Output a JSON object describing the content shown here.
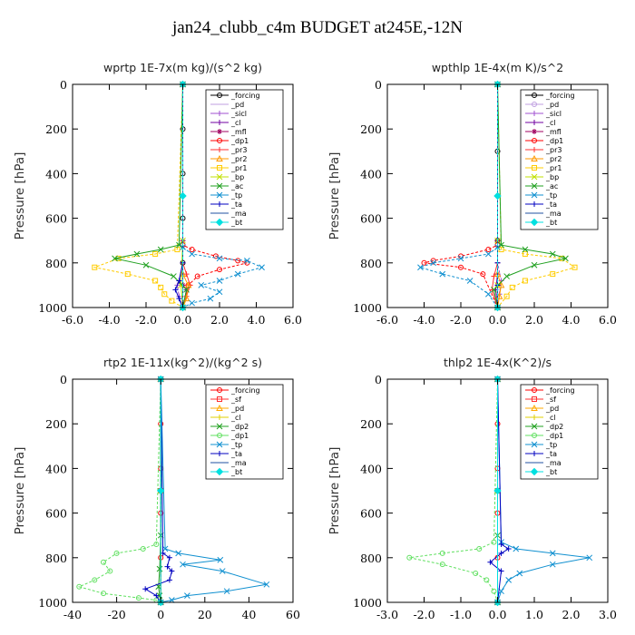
{
  "title": "jan24_clubb_c4m  BUDGET at245E,-12N",
  "chart_data": [
    {
      "type": "line",
      "title": "wprtp  1E-7x(m kg)/(s^2 kg)",
      "ylabel": "Pressure [hPa]",
      "xlim": [
        -6,
        6
      ],
      "ylim": [
        0,
        1000
      ],
      "y_inverted": true,
      "xticks": [
        "-6.0",
        "-4.0",
        "-2.0",
        "0.0",
        "2.0",
        "4.0",
        "6.0"
      ],
      "yticks": [
        "0",
        "200",
        "400",
        "600",
        "800",
        "1000"
      ],
      "legend_position": "top-right",
      "series": [
        {
          "name": "_forcing",
          "color": "#000000",
          "marker": "o",
          "x": [
            0,
            0,
            0,
            0,
            0,
            0
          ],
          "y": [
            0,
            200,
            400,
            600,
            800,
            1000
          ]
        },
        {
          "name": "_pd",
          "color": "#bf9fe0",
          "marker": "none",
          "x": [
            0,
            0,
            0,
            0
          ],
          "y": [
            0,
            500,
            900,
            1000
          ]
        },
        {
          "name": "_sicl",
          "color": "#a050d0",
          "marker": "+",
          "x": [
            0,
            0,
            0,
            -0.3,
            -0.2,
            0
          ],
          "y": [
            0,
            700,
            850,
            900,
            950,
            1000
          ]
        },
        {
          "name": "_cl",
          "color": "#7000a0",
          "marker": "+",
          "x": [
            0,
            0,
            -0.2,
            0.2,
            0
          ],
          "y": [
            0,
            800,
            880,
            920,
            1000
          ]
        },
        {
          "name": "_mfl",
          "color": "#a00060",
          "marker": "*",
          "x": [
            0,
            0,
            0,
            0
          ],
          "y": [
            0,
            700,
            900,
            1000
          ]
        },
        {
          "name": "_dp1",
          "color": "#ff0000",
          "marker": "o",
          "x": [
            0,
            0,
            0.5,
            1.8,
            3,
            3.5,
            2,
            0.8,
            0.3,
            0
          ],
          "y": [
            0,
            720,
            740,
            770,
            790,
            800,
            830,
            860,
            900,
            1000
          ]
        },
        {
          "name": "_pr3",
          "color": "#ff3030",
          "marker": "+",
          "x": [
            0,
            0,
            0.2,
            0.4,
            0.2,
            0
          ],
          "y": [
            0,
            800,
            850,
            900,
            950,
            1000
          ]
        },
        {
          "name": "_pr2",
          "color": "#ff9900",
          "marker": "triangle",
          "x": [
            0,
            0,
            0.3,
            0.2,
            0
          ],
          "y": [
            0,
            850,
            900,
            960,
            1000
          ]
        },
        {
          "name": "_pr1",
          "color": "#ffcc00",
          "marker": "square",
          "x": [
            0,
            -0.3,
            -1.5,
            -3.5,
            -4.8,
            -3,
            -1.5,
            -1.2,
            -1,
            -0.6,
            0
          ],
          "y": [
            0,
            740,
            760,
            780,
            820,
            850,
            880,
            910,
            940,
            970,
            1000
          ]
        },
        {
          "name": "_bp",
          "color": "#c0e000",
          "marker": "x",
          "x": [
            0,
            0,
            -0.1,
            0
          ],
          "y": [
            0,
            700,
            900,
            1000
          ]
        },
        {
          "name": "_ac",
          "color": "#20a020",
          "marker": "x",
          "x": [
            0,
            -0.2,
            -1.2,
            -2.5,
            -3.7,
            -2,
            -0.5,
            0.2,
            0
          ],
          "y": [
            0,
            720,
            740,
            760,
            780,
            810,
            860,
            920,
            1000
          ]
        },
        {
          "name": "_tp",
          "color": "#1090d0",
          "marker": "x",
          "x": [
            0,
            0,
            0.5,
            2,
            3.5,
            4.3,
            3,
            2,
            1,
            2,
            1.5,
            0.5,
            0
          ],
          "y": [
            0,
            730,
            760,
            780,
            790,
            820,
            850,
            880,
            900,
            930,
            960,
            980,
            1000
          ]
        },
        {
          "name": "_ta",
          "color": "#0000c0",
          "marker": "+",
          "x": [
            0,
            0,
            -0.2,
            -0.4,
            -0.2,
            0
          ],
          "y": [
            0,
            800,
            880,
            920,
            960,
            1000
          ]
        },
        {
          "name": "_ma",
          "color": "#2050a0",
          "marker": "none",
          "x": [
            0,
            0,
            0
          ],
          "y": [
            0,
            700,
            1000
          ]
        },
        {
          "name": "_bt",
          "color": "#00e0e0",
          "marker": "diamond",
          "x": [
            0,
            0,
            0
          ],
          "y": [
            0,
            500,
            1000
          ]
        }
      ]
    },
    {
      "type": "line",
      "title": "wpthlp  1E-4x(m K)/s^2",
      "ylabel": "Pressure [hPa]",
      "xlim": [
        -6,
        6
      ],
      "ylim": [
        0,
        1000
      ],
      "y_inverted": true,
      "xticks": [
        "-6.0",
        "-4.0",
        "-2.0",
        "0.0",
        "2.0",
        "4.0",
        "6.0"
      ],
      "yticks": [
        "0",
        "200",
        "400",
        "600",
        "800",
        "1000"
      ],
      "legend_position": "top-right",
      "series": [
        {
          "name": "_forcing",
          "color": "#000000",
          "marker": "o",
          "x": [
            0,
            0,
            0,
            0
          ],
          "y": [
            0,
            300,
            700,
            1000
          ]
        },
        {
          "name": "_pd",
          "color": "#bf9fe0",
          "marker": "o",
          "x": [
            0,
            0,
            0
          ],
          "y": [
            0,
            500,
            1000
          ]
        },
        {
          "name": "_sicl",
          "color": "#a050d0",
          "marker": "+",
          "x": [
            0,
            0,
            0.2,
            0.1,
            0
          ],
          "y": [
            0,
            800,
            880,
            940,
            1000
          ]
        },
        {
          "name": "_cl",
          "color": "#7000a0",
          "marker": "+",
          "x": [
            0,
            0,
            -0.1,
            0
          ],
          "y": [
            0,
            850,
            920,
            1000
          ]
        },
        {
          "name": "_mfl",
          "color": "#a00060",
          "marker": "*",
          "x": [
            0,
            0,
            0,
            0
          ],
          "y": [
            0,
            700,
            900,
            1000
          ]
        },
        {
          "name": "_dp1",
          "color": "#ff0000",
          "marker": "o",
          "x": [
            0,
            0,
            -0.5,
            -2,
            -3.5,
            -4,
            -2,
            -0.8,
            0
          ],
          "y": [
            0,
            720,
            740,
            770,
            790,
            800,
            820,
            850,
            1000
          ]
        },
        {
          "name": "_pr3",
          "color": "#ff3030",
          "marker": "+",
          "x": [
            0,
            0,
            -0.2,
            -0.3,
            0
          ],
          "y": [
            0,
            800,
            860,
            920,
            1000
          ]
        },
        {
          "name": "_pr2",
          "color": "#ff9900",
          "marker": "triangle",
          "x": [
            0,
            0,
            0.2,
            0.1,
            0
          ],
          "y": [
            0,
            850,
            900,
            950,
            1000
          ]
        },
        {
          "name": "_pr1",
          "color": "#ffcc00",
          "marker": "square",
          "x": [
            0,
            0.2,
            1.5,
            3.5,
            4.2,
            3,
            1.5,
            0.8,
            0.5,
            0
          ],
          "y": [
            0,
            740,
            760,
            780,
            820,
            850,
            880,
            910,
            950,
            1000
          ]
        },
        {
          "name": "_bp",
          "color": "#c0e000",
          "marker": "x",
          "x": [
            0,
            0,
            0,
            0
          ],
          "y": [
            0,
            700,
            900,
            1000
          ]
        },
        {
          "name": "_ac",
          "color": "#20a020",
          "marker": "x",
          "x": [
            0,
            0.2,
            1.5,
            3,
            3.7,
            2,
            0.5,
            -0.2,
            0
          ],
          "y": [
            0,
            720,
            740,
            760,
            780,
            810,
            860,
            920,
            1000
          ]
        },
        {
          "name": "_tp",
          "color": "#1090d0",
          "marker": "x",
          "x": [
            0,
            0,
            -0.5,
            -2,
            -3.5,
            -4.2,
            -3,
            -1.5,
            -0.5,
            0
          ],
          "y": [
            0,
            730,
            760,
            780,
            800,
            820,
            850,
            880,
            940,
            1000
          ]
        },
        {
          "name": "_ta",
          "color": "#0000c0",
          "marker": "+",
          "x": [
            0,
            0,
            0,
            0
          ],
          "y": [
            0,
            800,
            900,
            1000
          ]
        },
        {
          "name": "_ma",
          "color": "#2050a0",
          "marker": "none",
          "x": [
            0,
            0,
            0
          ],
          "y": [
            0,
            700,
            1000
          ]
        },
        {
          "name": "_bt",
          "color": "#00e0e0",
          "marker": "diamond",
          "x": [
            0,
            0,
            0
          ],
          "y": [
            0,
            500,
            1000
          ]
        }
      ]
    },
    {
      "type": "line",
      "title": "rtp2  1E-11x(kg^2)/(kg^2 s)",
      "ylabel": "Pressure [hPa]",
      "xlim": [
        -40,
        60
      ],
      "ylim": [
        0,
        1000
      ],
      "y_inverted": true,
      "xticks": [
        "-40",
        "-20",
        "0",
        "20",
        "40",
        "60"
      ],
      "yticks": [
        "0",
        "200",
        "400",
        "600",
        "800",
        "1000"
      ],
      "legend_position": "top-right",
      "series": [
        {
          "name": "_forcing",
          "color": "#ff0000",
          "marker": "o",
          "x": [
            0,
            0,
            0,
            0,
            0,
            0
          ],
          "y": [
            0,
            200,
            400,
            600,
            800,
            1000
          ]
        },
        {
          "name": "_sf",
          "color": "#ff3030",
          "marker": "square",
          "x": [
            0,
            0,
            0
          ],
          "y": [
            0,
            500,
            1000
          ]
        },
        {
          "name": "_pd",
          "color": "#ffaa00",
          "marker": "triangle",
          "x": [
            0,
            0,
            0
          ],
          "y": [
            0,
            500,
            1000
          ]
        },
        {
          "name": "_cl",
          "color": "#e0d000",
          "marker": "+",
          "x": [
            0,
            0,
            0
          ],
          "y": [
            0,
            500,
            1000
          ]
        },
        {
          "name": "_dp2",
          "color": "#20a020",
          "marker": "x",
          "x": [
            0,
            0,
            -0.5,
            -1,
            -0.5,
            0
          ],
          "y": [
            0,
            700,
            850,
            930,
            970,
            1000
          ]
        },
        {
          "name": "_dp1",
          "color": "#60e060",
          "marker": "o",
          "x": [
            0,
            -2,
            -8,
            -20,
            -26,
            -23,
            -30,
            -37,
            -26,
            -10,
            -2,
            0
          ],
          "y": [
            0,
            740,
            760,
            780,
            820,
            860,
            900,
            930,
            960,
            980,
            990,
            1000
          ]
        },
        {
          "name": "_tp",
          "color": "#1090d0",
          "marker": "x",
          "x": [
            0,
            2,
            8,
            27,
            10,
            28,
            48,
            30,
            12,
            5,
            0
          ],
          "y": [
            0,
            760,
            780,
            810,
            830,
            860,
            920,
            950,
            970,
            990,
            1000
          ]
        },
        {
          "name": "_ta",
          "color": "#0000c0",
          "marker": "+",
          "x": [
            0,
            1,
            4,
            3,
            5,
            4,
            -7,
            -2,
            0
          ],
          "y": [
            0,
            780,
            800,
            840,
            860,
            900,
            940,
            970,
            1000
          ]
        },
        {
          "name": "_ma",
          "color": "#2050a0",
          "marker": "none",
          "x": [
            0,
            0,
            0
          ],
          "y": [
            0,
            700,
            1000
          ]
        },
        {
          "name": "_bt",
          "color": "#00e0e0",
          "marker": "diamond",
          "x": [
            0,
            0,
            0
          ],
          "y": [
            0,
            500,
            1000
          ]
        }
      ]
    },
    {
      "type": "line",
      "title": "thlp2  1E-4x(K^2)/s",
      "ylabel": "Pressure [hPa]",
      "xlim": [
        -3,
        3
      ],
      "ylim": [
        0,
        1000
      ],
      "y_inverted": true,
      "xticks": [
        "-3.0",
        "-2.0",
        "-1.0",
        "0.0",
        "1.0",
        "2.0",
        "3.0"
      ],
      "yticks": [
        "0",
        "200",
        "400",
        "600",
        "800",
        "1000"
      ],
      "legend_position": "top-right",
      "series": [
        {
          "name": "_forcing",
          "color": "#ff0000",
          "marker": "o",
          "x": [
            0,
            0,
            0,
            0,
            0,
            0
          ],
          "y": [
            0,
            200,
            400,
            600,
            800,
            1000
          ]
        },
        {
          "name": "_sf",
          "color": "#ff3030",
          "marker": "square",
          "x": [
            0,
            0,
            0
          ],
          "y": [
            0,
            500,
            1000
          ]
        },
        {
          "name": "_pd",
          "color": "#ffaa00",
          "marker": "triangle",
          "x": [
            0,
            0,
            0
          ],
          "y": [
            0,
            500,
            1000
          ]
        },
        {
          "name": "_cl",
          "color": "#e0d000",
          "marker": "+",
          "x": [
            0,
            0,
            0
          ],
          "y": [
            0,
            500,
            1000
          ]
        },
        {
          "name": "_dp2",
          "color": "#20a020",
          "marker": "x",
          "x": [
            0,
            0,
            0
          ],
          "y": [
            0,
            700,
            1000
          ]
        },
        {
          "name": "_dp1",
          "color": "#60e060",
          "marker": "o",
          "x": [
            0,
            -0.1,
            -0.5,
            -1.5,
            -2.4,
            -1.5,
            -0.6,
            -0.3,
            -0.1,
            0
          ],
          "y": [
            0,
            730,
            760,
            780,
            800,
            830,
            870,
            900,
            950,
            1000
          ]
        },
        {
          "name": "_tp",
          "color": "#1090d0",
          "marker": "x",
          "x": [
            0,
            0.1,
            0.5,
            1.5,
            2.5,
            1.5,
            0.6,
            0.3,
            0.1,
            0
          ],
          "y": [
            0,
            730,
            760,
            780,
            800,
            830,
            870,
            900,
            950,
            1000
          ]
        },
        {
          "name": "_ta",
          "color": "#0000c0",
          "marker": "+",
          "x": [
            0,
            0.1,
            0.3,
            0.1,
            -0.2,
            0.1,
            0
          ],
          "y": [
            0,
            740,
            760,
            780,
            820,
            860,
            1000
          ]
        },
        {
          "name": "_ma",
          "color": "#2050a0",
          "marker": "none",
          "x": [
            0,
            0,
            0
          ],
          "y": [
            0,
            700,
            1000
          ]
        },
        {
          "name": "_bt",
          "color": "#00e0e0",
          "marker": "diamond",
          "x": [
            0,
            0,
            0
          ],
          "y": [
            0,
            500,
            1000
          ]
        }
      ]
    }
  ]
}
